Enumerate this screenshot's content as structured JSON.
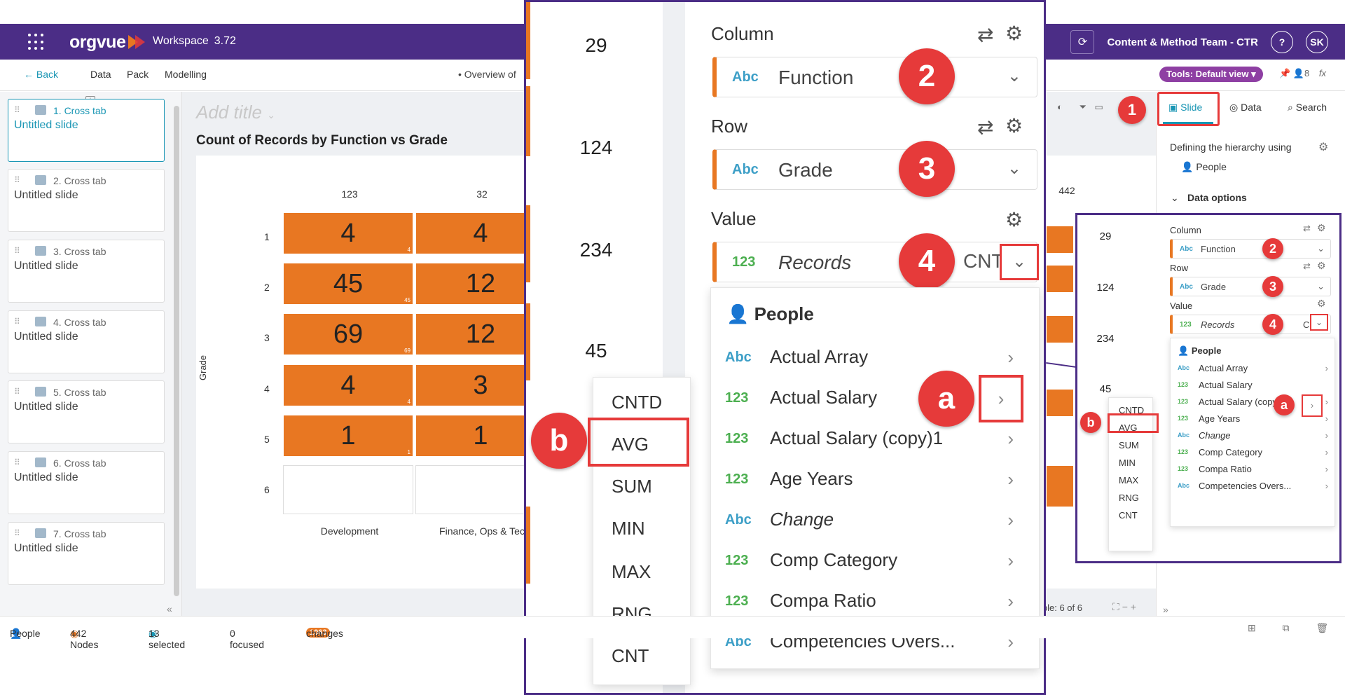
{
  "app": {
    "logo": "orgvue",
    "workspace": "Workspace",
    "version": "3.72",
    "team": "Content & Method Team - CTR",
    "help": "?",
    "avatar": "SK"
  },
  "subnav": {
    "back": "Back",
    "items": [
      "Data",
      "Pack",
      "Modelling"
    ],
    "overview": "Overview of",
    "tools": "Tools: Default view",
    "node_count": "8",
    "fx": "fx"
  },
  "slides": [
    {
      "kind": "1. Cross tab",
      "title": "Untitled slide"
    },
    {
      "kind": "2. Cross tab",
      "title": "Untitled slide"
    },
    {
      "kind": "3. Cross tab",
      "title": "Untitled slide"
    },
    {
      "kind": "4. Cross tab",
      "title": "Untitled slide"
    },
    {
      "kind": "5. Cross tab",
      "title": "Untitled slide"
    },
    {
      "kind": "6. Cross tab",
      "title": "Untitled slide"
    },
    {
      "kind": "7. Cross tab",
      "title": "Untitled slide"
    }
  ],
  "canvas": {
    "add_title": "Add title",
    "chart_title": "Count of Records by Function vs Grade",
    "col_totals": [
      "123",
      "32"
    ],
    "right_total": "442",
    "rows": [
      "1",
      "2",
      "3",
      "4",
      "5",
      "6"
    ],
    "row_axis_label": "Grade",
    "col_labels": [
      "Development",
      "Finance, Ops & Tec"
    ],
    "cells": [
      [
        {
          "v": "4",
          "s": "4"
        },
        {
          "v": "4",
          "s": ""
        }
      ],
      [
        {
          "v": "45",
          "s": "45"
        },
        {
          "v": "12",
          "s": ""
        }
      ],
      [
        {
          "v": "69",
          "s": "69"
        },
        {
          "v": "12",
          "s": ""
        }
      ],
      [
        {
          "v": "4",
          "s": "4"
        },
        {
          "v": "3",
          "s": ""
        }
      ],
      [
        {
          "v": "1",
          "s": "1"
        },
        {
          "v": "1",
          "s": ""
        }
      ]
    ],
    "visible": "ible: 6 of 6"
  },
  "right_panel": {
    "tabs": {
      "slide": "Slide",
      "data": "Data",
      "search": "Search"
    },
    "hierarchy": "Defining the hierarchy using",
    "hierarchy_source": "People",
    "data_options": "Data options"
  },
  "bottombar": {
    "people": "People",
    "nodes": "442 Nodes",
    "selected": "13 selected",
    "focused": "0 focused",
    "changes_count": "1063",
    "changes": "changes"
  },
  "zoom": {
    "row_values": [
      "29",
      "124",
      "234",
      "45"
    ],
    "column_label": "Column",
    "row_label": "Row",
    "value_label": "Value",
    "column_field": {
      "type": "Abc",
      "name": "Function"
    },
    "row_field": {
      "type": "Abc",
      "name": "Grade"
    },
    "value_field": {
      "type": "123",
      "name": "Records",
      "agg": "CNT"
    },
    "dropdown_group": "People",
    "dropdown_items": [
      {
        "type": "Abc",
        "name": "Actual Array",
        "italic": false
      },
      {
        "type": "123",
        "name": "Actual Salary",
        "italic": false
      },
      {
        "type": "123",
        "name": "Actual Salary (copy)1",
        "italic": false
      },
      {
        "type": "123",
        "name": "Age Years",
        "italic": false
      },
      {
        "type": "Abc",
        "name": "Change",
        "italic": true
      },
      {
        "type": "123",
        "name": "Comp Category",
        "italic": false
      },
      {
        "type": "123",
        "name": "Compa Ratio",
        "italic": false
      },
      {
        "type": "Abc",
        "name": "Competencies Overs...",
        "italic": false
      }
    ],
    "aggregations": [
      "CNTD",
      "AVG",
      "SUM",
      "MIN",
      "MAX",
      "RNG",
      "CNT"
    ],
    "badges": {
      "one": "1",
      "two": "2",
      "three": "3",
      "four": "4",
      "a": "a",
      "b": "b"
    }
  },
  "small_panel": {
    "row_values": [
      "29",
      "124",
      "234",
      "45"
    ]
  },
  "colors": {
    "brand": "#4b2d86",
    "accent": "#1a96b4",
    "cell": "#e87722",
    "callout": "#e63a3a"
  }
}
